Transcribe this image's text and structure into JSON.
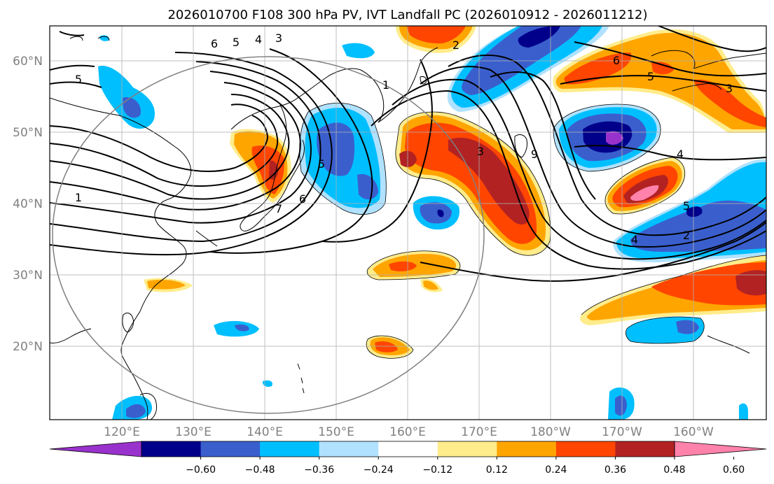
{
  "title": "2026010700 F108 300 hPa PV, IVT Landfall PC (2026010912 - 2026011212)",
  "lat_ticks": [
    "60°N",
    "50°N",
    "40°N",
    "30°N",
    "20°N"
  ],
  "lon_ticks": [
    "120°E",
    "130°E",
    "140°E",
    "150°E",
    "160°E",
    "170°E",
    "180°W",
    "170°W",
    "160°W"
  ],
  "colorbar": {
    "ticks": [
      "−0.60",
      "−0.48",
      "−0.36",
      "−0.24",
      "−0.12",
      "0.12",
      "0.24",
      "0.36",
      "0.48",
      "0.60"
    ],
    "colors": [
      "#9932cc",
      "#00008b",
      "#3a5fcd",
      "#00bfff",
      "#b0e2ff",
      "#ffffff",
      "#ffec8b",
      "#ffa500",
      "#ff4500",
      "#b22222",
      "#ff82ab"
    ]
  },
  "contour_labels": [
    "6",
    "5",
    "4",
    "3",
    "5",
    "1",
    "2",
    "1",
    "6",
    "5",
    "7",
    "3",
    "9",
    "6",
    "5",
    "3",
    "4",
    "5",
    "4",
    "2"
  ],
  "colors": {
    "grid": "#b0b0b0",
    "coast": "#000000",
    "circle": "#808080"
  }
}
